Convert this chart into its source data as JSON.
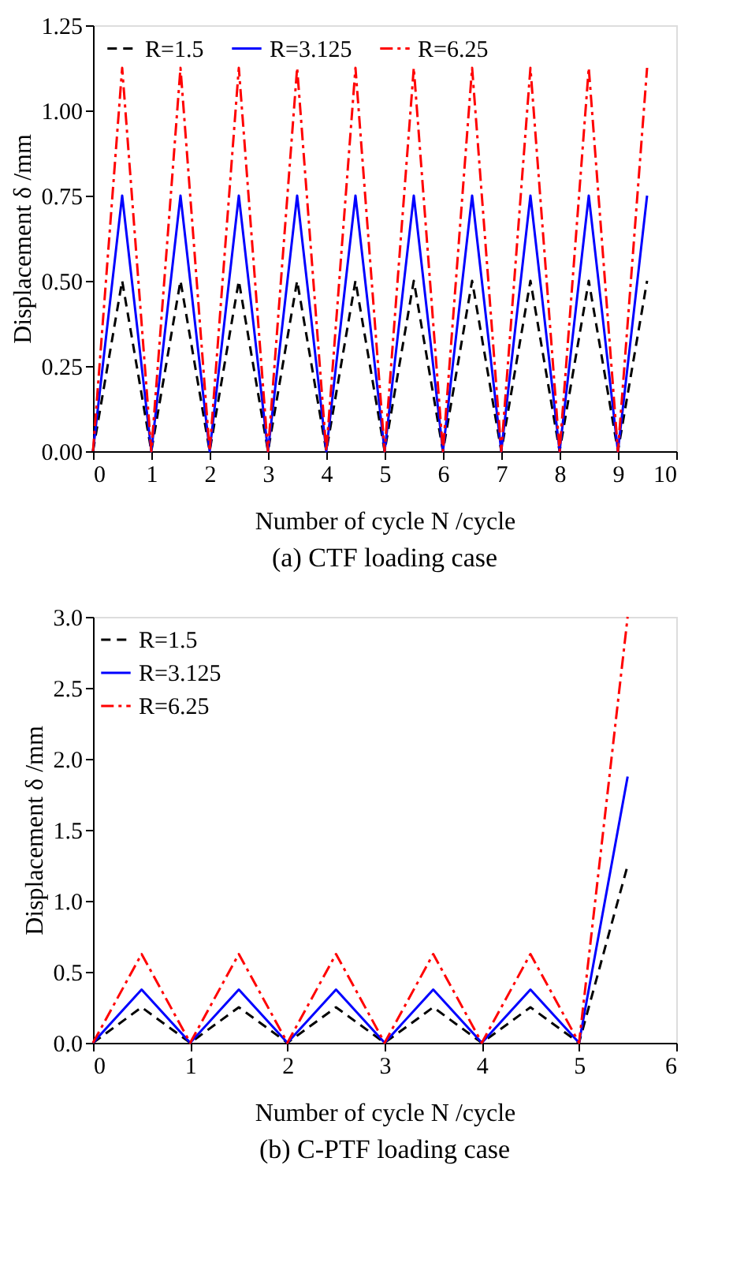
{
  "chart_data": [
    {
      "type": "line",
      "title": "(a) CTF loading case",
      "xlabel": "Number of cycle N /cycle",
      "ylabel": "Displacement δ /mm",
      "x": [
        0,
        0.5,
        1,
        1.5,
        2,
        2.5,
        3,
        3.5,
        4,
        4.5,
        5,
        5.5,
        6,
        6.5,
        7,
        7.5,
        8,
        8.5,
        9,
        9.5
      ],
      "series": [
        {
          "name": "R=1.5",
          "color": "#000000",
          "line_style": "dashed",
          "values": [
            0,
            0.5,
            0,
            0.5,
            0,
            0.5,
            0,
            0.5,
            0,
            0.5,
            0,
            0.5,
            0,
            0.5,
            0,
            0.5,
            0,
            0.5,
            0,
            0.5
          ]
        },
        {
          "name": "R=3.125",
          "color": "#0000ff",
          "line_style": "solid",
          "values": [
            0,
            0.75,
            0,
            0.75,
            0,
            0.75,
            0,
            0.75,
            0,
            0.75,
            0,
            0.75,
            0,
            0.75,
            0,
            0.75,
            0,
            0.75,
            0,
            0.75
          ]
        },
        {
          "name": "R=6.25",
          "color": "#ff0000",
          "line_style": "dashdot",
          "values": [
            0,
            1.125,
            0,
            1.125,
            0,
            1.125,
            0,
            1.125,
            0,
            1.125,
            0,
            1.125,
            0,
            1.125,
            0,
            1.125,
            0,
            1.125,
            0,
            1.125
          ]
        }
      ],
      "xlim": [
        0,
        10
      ],
      "xticks": [
        0,
        1,
        2,
        3,
        4,
        5,
        6,
        7,
        8,
        9,
        10
      ],
      "ylim": [
        0,
        1.25
      ],
      "yticks": [
        {
          "value": 0,
          "label": "0.00"
        },
        {
          "value": 0.25,
          "label": "0.25"
        },
        {
          "value": 0.5,
          "label": "0.50"
        },
        {
          "value": 0.75,
          "label": "0.75"
        },
        {
          "value": 1,
          "label": "1.00"
        },
        {
          "value": 1.25,
          "label": "1.25"
        }
      ],
      "grid": false,
      "legend": "top"
    },
    {
      "type": "line",
      "title": "(b) C-PTF loading case",
      "xlabel": "Number of cycle N /cycle",
      "ylabel": "Displacement δ /mm",
      "x": [
        0,
        0.5,
        1,
        1.5,
        2,
        2.5,
        3,
        3.5,
        4,
        4.5,
        5,
        5.5
      ],
      "series": [
        {
          "name": "R=1.5",
          "color": "#000000",
          "line_style": "dashed",
          "values": [
            0,
            0.25,
            0,
            0.25,
            0,
            0.25,
            0,
            0.25,
            0,
            0.25,
            0,
            1.25
          ]
        },
        {
          "name": "R=3.125",
          "color": "#0000ff",
          "line_style": "solid",
          "values": [
            0,
            0.375,
            0,
            0.375,
            0,
            0.375,
            0,
            0.375,
            0,
            0.375,
            0,
            1.875
          ]
        },
        {
          "name": "R=6.25",
          "color": "#ff0000",
          "line_style": "dashdot",
          "values": [
            0,
            0.625,
            0,
            0.625,
            0,
            0.625,
            0,
            0.625,
            0,
            0.625,
            0,
            3.0
          ]
        }
      ],
      "xlim": [
        0,
        6
      ],
      "xticks": [
        0,
        1,
        2,
        3,
        4,
        5,
        6
      ],
      "ylim": [
        0,
        3.0
      ],
      "yticks": [
        {
          "value": 0,
          "label": "0.0"
        },
        0.5,
        {
          "value": 1,
          "label": "1.0"
        },
        1.5,
        {
          "value": 2,
          "label": "2.0"
        },
        2.5,
        {
          "value": 3,
          "label": "3.0"
        }
      ],
      "grid": false,
      "legend": "top left"
    }
  ]
}
